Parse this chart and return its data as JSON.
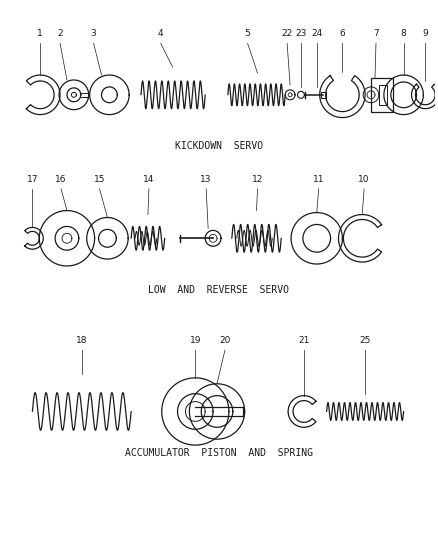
{
  "bg_color": "#ffffff",
  "line_color": "#1a1a1a",
  "section1_label": "KICKDOWN  SERVO",
  "section2_label": "LOW  AND  REVERSE  SERVO",
  "section3_label": "ACCUMULATOR  PISTON  AND  SPRING",
  "fig_width": 4.38,
  "fig_height": 5.33,
  "dpi": 100,
  "label_fontsize": 7.0,
  "number_fontsize": 6.5
}
